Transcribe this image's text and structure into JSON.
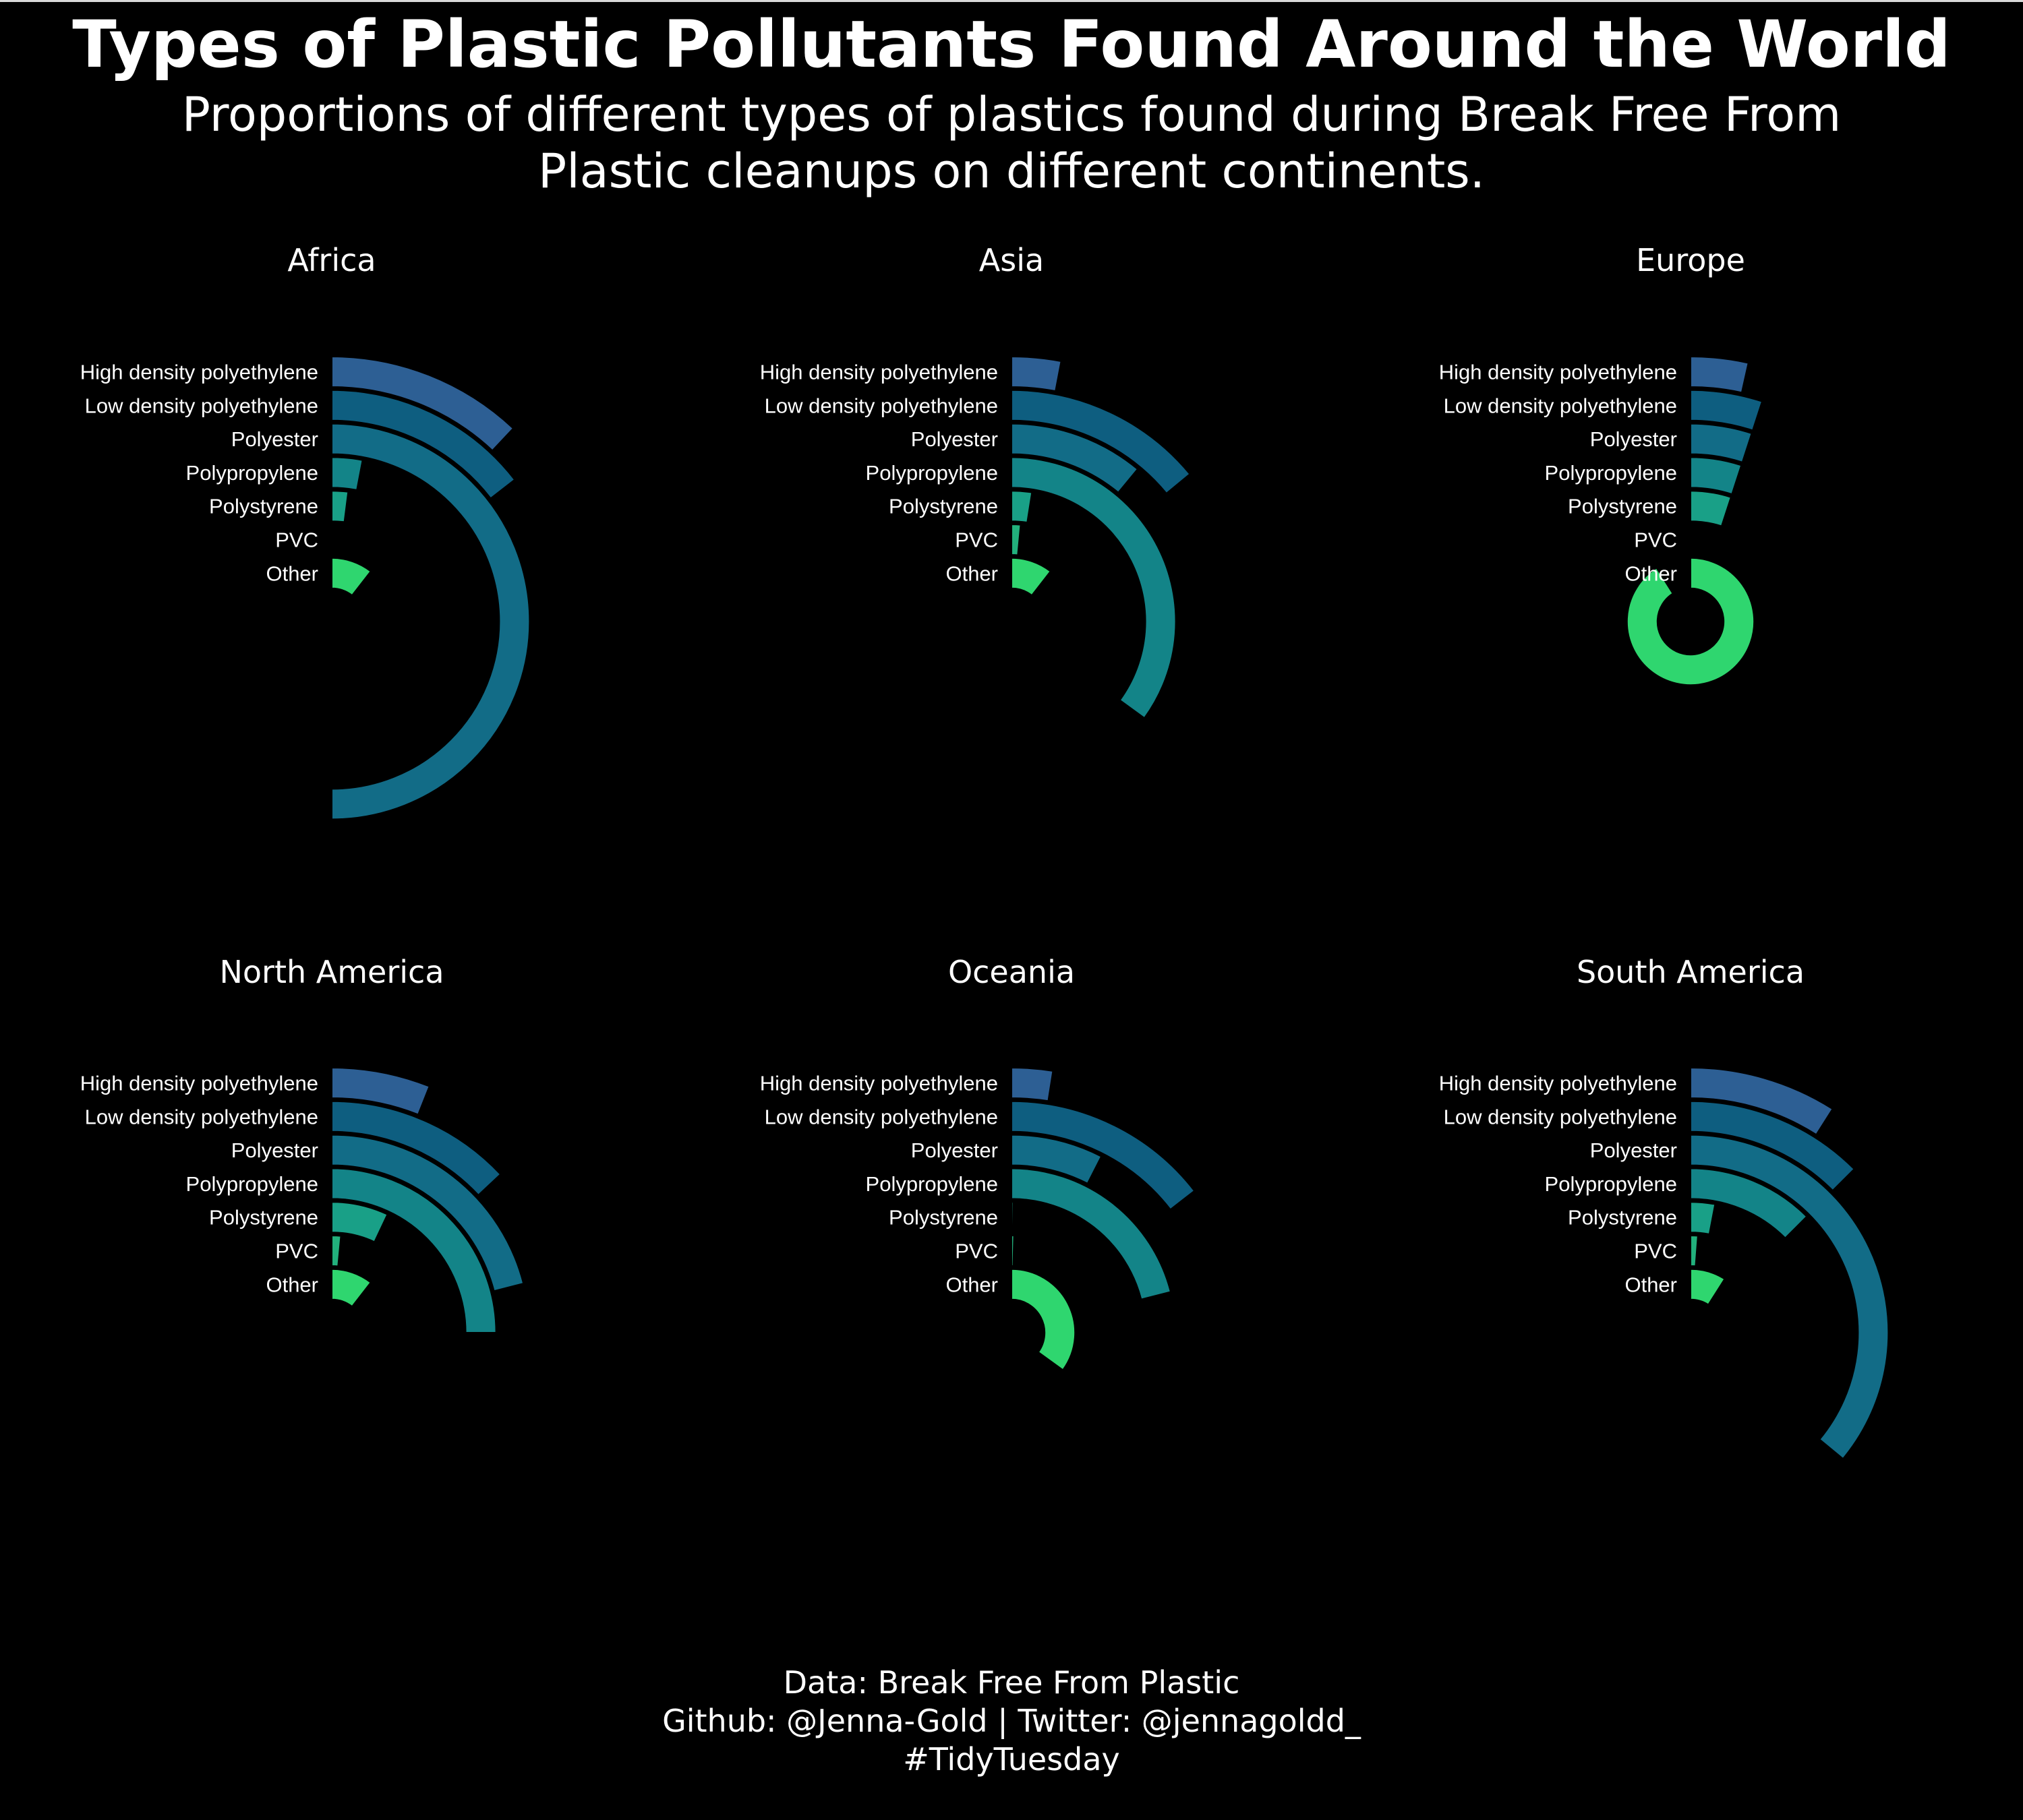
{
  "title": "Types of Plastic Pollutants Found Around the World",
  "subtitle": "Proportions of different types of plastics found during Break Free From Plastic cleanups on different continents.",
  "caption": {
    "line1": "Data: Break Free From Plastic",
    "line2": "Github: @Jenna-Gold | Twitter: @jennagoldd_",
    "line3": "#TidyTuesday"
  },
  "colors": {
    "background": "#000000",
    "text": "#ffffff",
    "categories": [
      "#2d5f94",
      "#0e5e80",
      "#126c87",
      "#138488",
      "#19a087",
      "#22b07c",
      "#2fd66f"
    ]
  },
  "chart_data": {
    "type": "radial-bar",
    "categories": [
      "High density polyethylene",
      "Low density polyethylene",
      "Polyester",
      "Polypropylene",
      "Polystyrene",
      "PVC",
      "Other"
    ],
    "panels": [
      {
        "name": "Africa",
        "values": [
          0.12,
          0.145,
          0.5,
          0.03,
          0.02,
          0.001,
          0.105
        ]
      },
      {
        "name": "Asia",
        "values": [
          0.03,
          0.14,
          0.11,
          0.35,
          0.025,
          0.015,
          0.105
        ]
      },
      {
        "name": "Europe",
        "values": [
          0.035,
          0.05,
          0.05,
          0.05,
          0.05,
          0.002,
          0.91
        ]
      },
      {
        "name": "North America",
        "values": [
          0.06,
          0.13,
          0.21,
          0.25,
          0.07,
          0.015,
          0.105
        ]
      },
      {
        "name": "Oceania",
        "values": [
          0.025,
          0.145,
          0.075,
          0.21,
          0.002,
          0.004,
          0.35
        ]
      },
      {
        "name": "South America",
        "values": [
          0.09,
          0.125,
          0.36,
          0.125,
          0.03,
          0.012,
          0.09
        ]
      }
    ]
  }
}
